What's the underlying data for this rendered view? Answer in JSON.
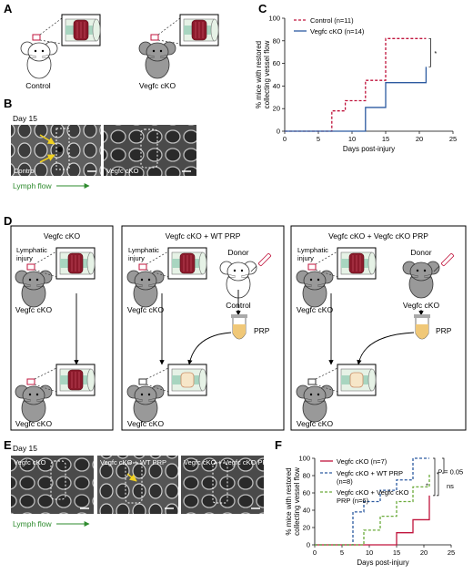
{
  "panels": {
    "A": {
      "letter": "A",
      "labels": [
        "Control",
        "Vegfc cKO"
      ]
    },
    "B": {
      "letter": "B",
      "day": "Day 15",
      "micro": [
        "Control",
        "Vegfc cKO"
      ],
      "flow": "Lymph flow"
    },
    "C": {
      "letter": "C"
    },
    "D": {
      "letter": "D",
      "boxes": [
        {
          "title": "Vegfc cKO",
          "injury": "Lymphatic injury",
          "mouse_top": "Vegfc cKO",
          "mouse_bottom": "Vegfc cKO"
        },
        {
          "title": "Vegfc cKO + WT PRP",
          "injury": "Lymphatic injury",
          "donor": "Donor",
          "donor_type": "Control",
          "prp": "PRP",
          "mouse_top": "Vegfc cKO",
          "mouse_bottom": "Vegfc cKO"
        },
        {
          "title": "Vegfc cKO + Vegfc cKO PRP",
          "injury": "Lymphatic injury",
          "donor": "Donor",
          "donor_type": "Vegfc cKO",
          "prp": "PRP",
          "mouse_top": "Vegfc cKO",
          "mouse_bottom": "Vegfc cKO"
        }
      ]
    },
    "E": {
      "letter": "E",
      "day": "Day 15",
      "micro": [
        "Vegfc cKO",
        "Vegfc cKO + WT PRP",
        "Vegfc cKO + Vegfc cKO PRP"
      ],
      "flow": "Lymph flow"
    },
    "F": {
      "letter": "F"
    }
  },
  "colors": {
    "red": "#c0143c",
    "blue": "#2c5aa0",
    "green": "#6aaa3a",
    "arrow_green": "#2e8b2e",
    "yellow": "#f0d020"
  },
  "chart_data": [
    {
      "type": "line",
      "step": true,
      "title": "",
      "xlabel": "Days post-injury",
      "ylabel": "% mice with restored collecting vessel flow",
      "xlim": [
        0,
        25
      ],
      "ylim": [
        0,
        100
      ],
      "xticks": [
        0,
        5,
        10,
        15,
        20,
        25
      ],
      "yticks": [
        0,
        20,
        40,
        60,
        80,
        100
      ],
      "legend_position": "top-left",
      "significance": "*",
      "series": [
        {
          "name": "Control (n=11)",
          "style": "dashed",
          "color": "#c0143c",
          "x": [
            0,
            7,
            9,
            12,
            15,
            21
          ],
          "y": [
            0,
            18,
            27,
            45,
            82,
            82
          ]
        },
        {
          "name": "Vegfc cKO (n=14)",
          "style": "solid",
          "color": "#2c5aa0",
          "x": [
            0,
            12,
            15,
            21
          ],
          "y": [
            0,
            21,
            43,
            57
          ]
        }
      ]
    },
    {
      "type": "line",
      "step": true,
      "title": "",
      "xlabel": "Days post-injury",
      "ylabel": "% mice with restored collecting vessel flow",
      "xlim": [
        0,
        25
      ],
      "ylim": [
        0,
        100
      ],
      "xticks": [
        0,
        5,
        10,
        15,
        20,
        25
      ],
      "yticks": [
        0,
        20,
        40,
        60,
        80,
        100
      ],
      "legend_position": "top-left",
      "annotations": {
        "p": "= 0.05",
        "p_symbol": "P",
        "star": "*",
        "ns": "ns"
      },
      "series": [
        {
          "name": "Vegfc cKO (n=7)",
          "style": "solid",
          "color": "#c0143c",
          "x": [
            0,
            15,
            18,
            21
          ],
          "y": [
            0,
            14,
            29,
            57
          ]
        },
        {
          "name": "Vegfc cKO + WT PRP (n=8)",
          "style": "dashed",
          "color": "#2c5aa0",
          "x": [
            0,
            7,
            9,
            12,
            15,
            18,
            21
          ],
          "y": [
            0,
            38,
            50,
            63,
            75,
            100,
            100
          ]
        },
        {
          "name": "Vegfc cKO + Vegfc cKO PRP (n=6)",
          "style": "dashed",
          "color": "#6aaa3a",
          "x": [
            0,
            9,
            12,
            15,
            18,
            21
          ],
          "y": [
            0,
            17,
            33,
            50,
            67,
            83
          ]
        }
      ]
    }
  ]
}
